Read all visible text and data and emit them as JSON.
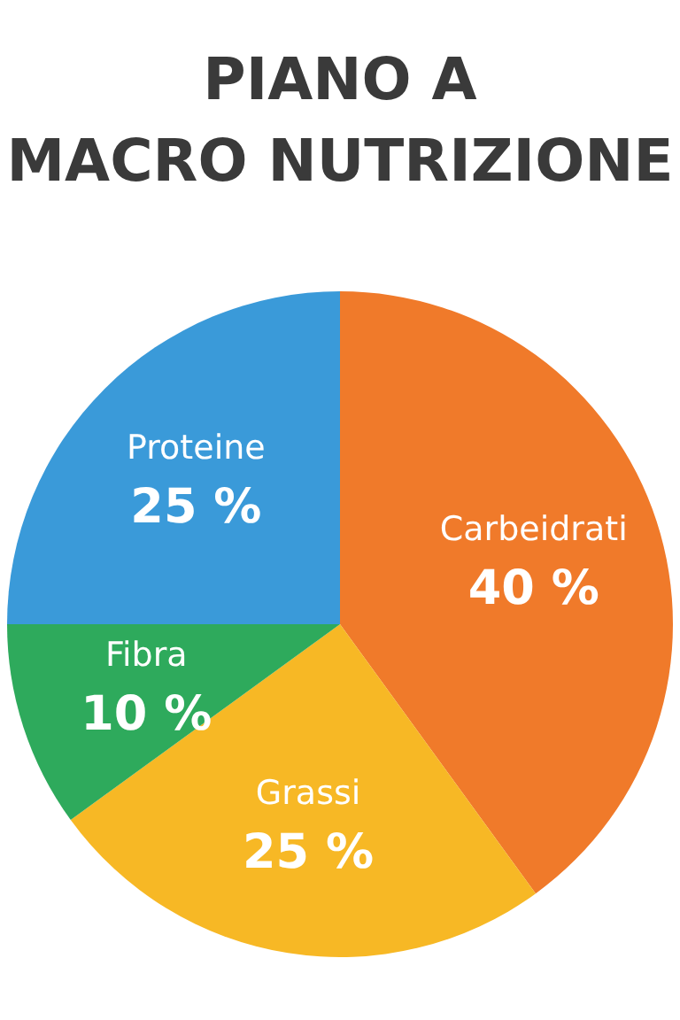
{
  "chart_data": {
    "type": "pie",
    "title": "PIANO A\nMACRO NUTRIZIONE",
    "categories": [
      "Carbeidrati",
      "Grassi",
      "Fibra",
      "Proteine"
    ],
    "values": [
      40,
      25,
      10,
      25
    ],
    "value_labels": [
      "40 %",
      "25 %",
      "10 %",
      "25 %"
    ],
    "colors": [
      "#f07a2a",
      "#f7b825",
      "#2eaa5c",
      "#3a9ad9"
    ],
    "legend": false
  }
}
